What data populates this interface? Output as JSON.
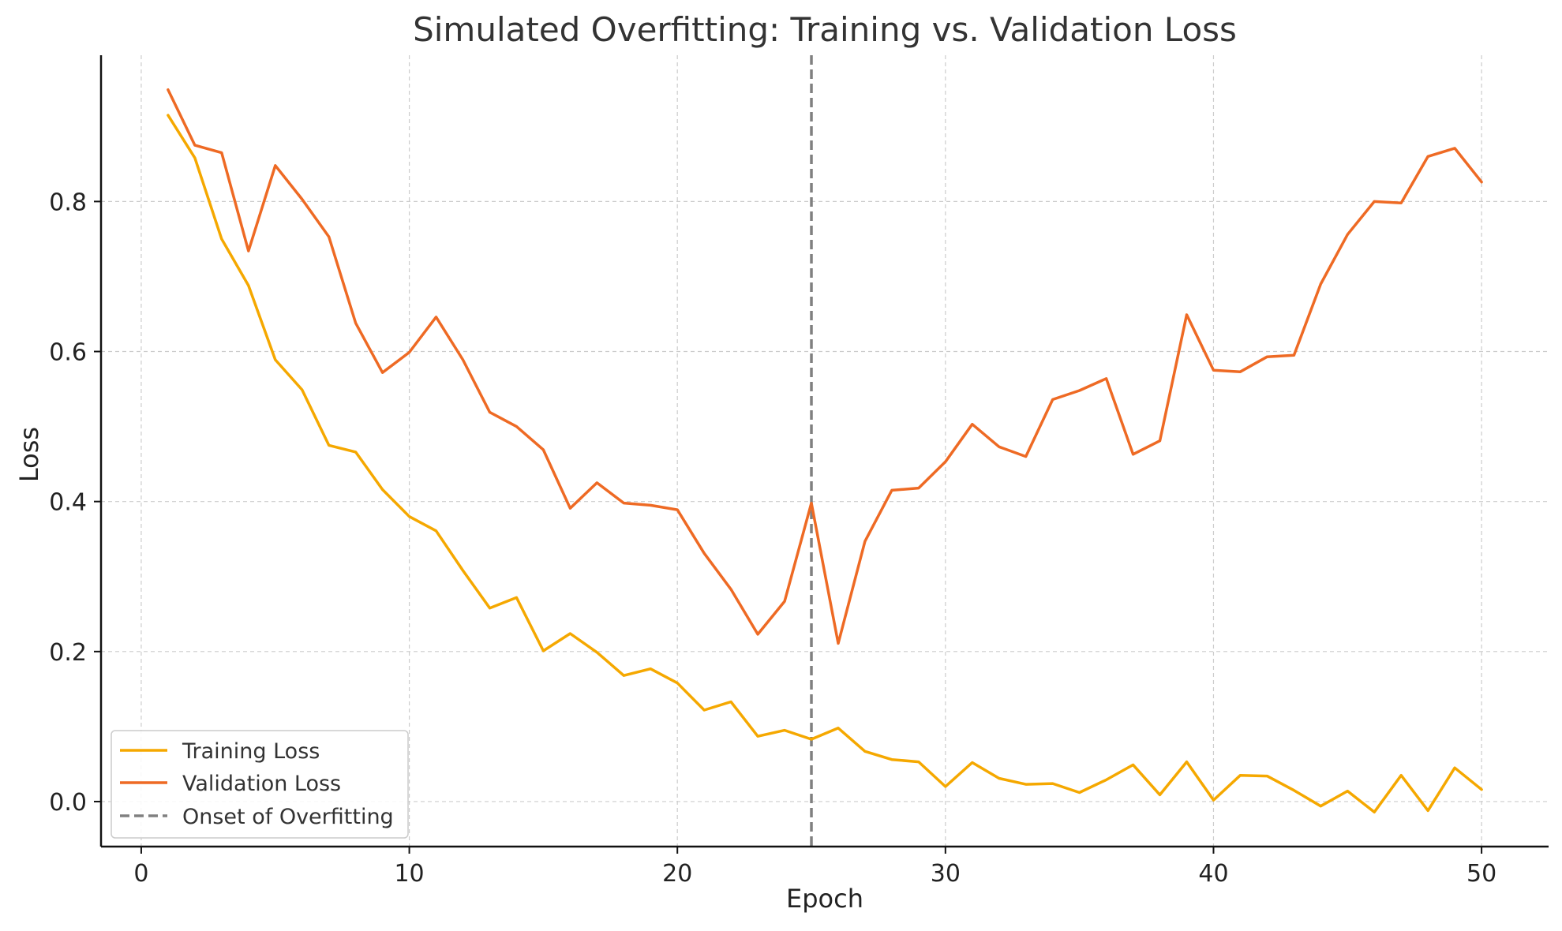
{
  "chart_data": {
    "type": "line",
    "title": "Simulated Overfitting: Training vs. Validation Loss",
    "xlabel": "Epoch",
    "ylabel": "Loss",
    "xlim": [
      -1.5,
      52.5
    ],
    "ylim": [
      -0.06,
      0.995
    ],
    "xticks": [
      0,
      10,
      20,
      30,
      40,
      50
    ],
    "yticks": [
      0.0,
      0.2,
      0.4,
      0.6,
      0.8
    ],
    "xtick_labels": [
      "0",
      "10",
      "20",
      "30",
      "40",
      "50"
    ],
    "ytick_labels": [
      "0.0",
      "0.2",
      "0.4",
      "0.6",
      "0.8"
    ],
    "grid": true,
    "legend_position": "lower-left",
    "x": [
      1,
      2,
      3,
      4,
      5,
      6,
      7,
      8,
      9,
      10,
      11,
      12,
      13,
      14,
      15,
      16,
      17,
      18,
      19,
      20,
      21,
      22,
      23,
      24,
      25,
      26,
      27,
      28,
      29,
      30,
      31,
      32,
      33,
      34,
      35,
      36,
      37,
      38,
      39,
      40,
      41,
      42,
      43,
      44,
      45,
      46,
      47,
      48,
      49,
      50
    ],
    "series": [
      {
        "name": "Training Loss",
        "color": "#f5a800",
        "values": [
          0.915,
          0.858,
          0.75,
          0.688,
          0.589,
          0.549,
          0.475,
          0.466,
          0.416,
          0.38,
          0.361,
          0.308,
          0.258,
          0.272,
          0.201,
          0.224,
          0.199,
          0.168,
          0.177,
          0.158,
          0.122,
          0.133,
          0.087,
          0.095,
          0.083,
          0.098,
          0.067,
          0.056,
          0.053,
          0.02,
          0.052,
          0.031,
          0.023,
          0.024,
          0.012,
          0.029,
          0.049,
          0.009,
          0.053,
          0.002,
          0.035,
          0.034,
          0.015,
          -0.006,
          0.014,
          -0.014,
          0.035,
          -0.012,
          0.045,
          0.016
        ]
      },
      {
        "name": "Validation Loss",
        "color": "#ee6a24",
        "values": [
          0.949,
          0.875,
          0.865,
          0.734,
          0.848,
          0.803,
          0.753,
          0.638,
          0.572,
          0.599,
          0.646,
          0.589,
          0.519,
          0.5,
          0.469,
          0.391,
          0.425,
          0.398,
          0.395,
          0.389,
          0.331,
          0.283,
          0.223,
          0.267,
          0.398,
          0.211,
          0.347,
          0.415,
          0.418,
          0.453,
          0.503,
          0.473,
          0.46,
          0.536,
          0.548,
          0.564,
          0.463,
          0.481,
          0.649,
          0.575,
          0.573,
          0.593,
          0.595,
          0.69,
          0.756,
          0.8,
          0.798,
          0.86,
          0.871,
          0.826
        ]
      }
    ],
    "annotations": [
      {
        "type": "vline",
        "x": 25,
        "name": "Onset of Overfitting",
        "color": "#808080",
        "style": "dashed"
      }
    ]
  }
}
